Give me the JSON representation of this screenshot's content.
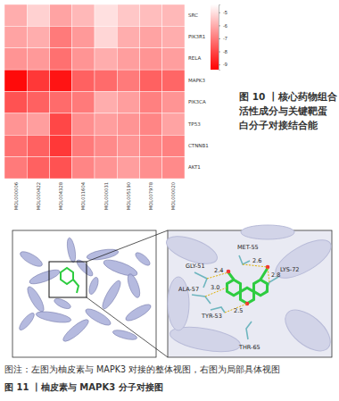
{
  "chart_data": {
    "type": "heatmap",
    "title": "图 10 丨核心药物组合活性成分与关键靶蛋白分子对接结合能",
    "x": [
      "MOL000006",
      "MOL000422",
      "MOL004328",
      "MOL011604",
      "MOL000031",
      "MOL005190",
      "MOL007978",
      "MOL000020"
    ],
    "y": [
      "SRC",
      "PIK3R1",
      "RELA",
      "MAPK3",
      "PIK3CA",
      "TP53",
      "CTNNB1",
      "AKT1"
    ],
    "values": [
      [
        -6.0,
        -5.3,
        -6.2,
        -5.8,
        -5.0,
        -5.5,
        -5.7,
        -5.8
      ],
      [
        -6.2,
        -6.0,
        -7.0,
        -6.4,
        -5.2,
        -6.0,
        -6.2,
        -6.0
      ],
      [
        -6.5,
        -6.4,
        -7.2,
        -6.5,
        -6.0,
        -6.3,
        -6.5,
        -6.3
      ],
      [
        -9.2,
        -8.3,
        -9.0,
        -7.5,
        -7.3,
        -7.0,
        -7.5,
        -7.4
      ],
      [
        -7.8,
        -7.5,
        -7.3,
        -7.0,
        -6.0,
        -6.3,
        -6.9,
        -6.5
      ],
      [
        -6.5,
        -6.3,
        -8.0,
        -6.6,
        -6.3,
        -6.5,
        -6.8,
        -6.2
      ],
      [
        -7.2,
        -7.5,
        -8.3,
        -7.0,
        -6.7,
        -6.5,
        -6.8,
        -6.9
      ],
      [
        -7.0,
        -7.5,
        -7.8,
        -6.8,
        -6.5,
        -6.3,
        -6.6,
        -6.7
      ]
    ],
    "color": "#ff0000",
    "colorbar": {
      "range": [
        -4.4,
        -9.4
      ],
      "ticks": [
        -5,
        -6,
        -7,
        -8,
        -9
      ]
    }
  },
  "figure11": {
    "residues": [
      "GLY-51",
      "MET-55",
      "LYS-72",
      "ALA-57",
      "TYR-53",
      "THR-65"
    ],
    "distances": [
      "2.4",
      "2.6",
      "2.8",
      "3.0",
      "2.5"
    ],
    "note": "图注：左图为柚皮素与 MAPK3 对接的整体视图，右图为局部具体视图",
    "title": "图 11 丨柚皮素与 MAPK3 分子对接图"
  }
}
